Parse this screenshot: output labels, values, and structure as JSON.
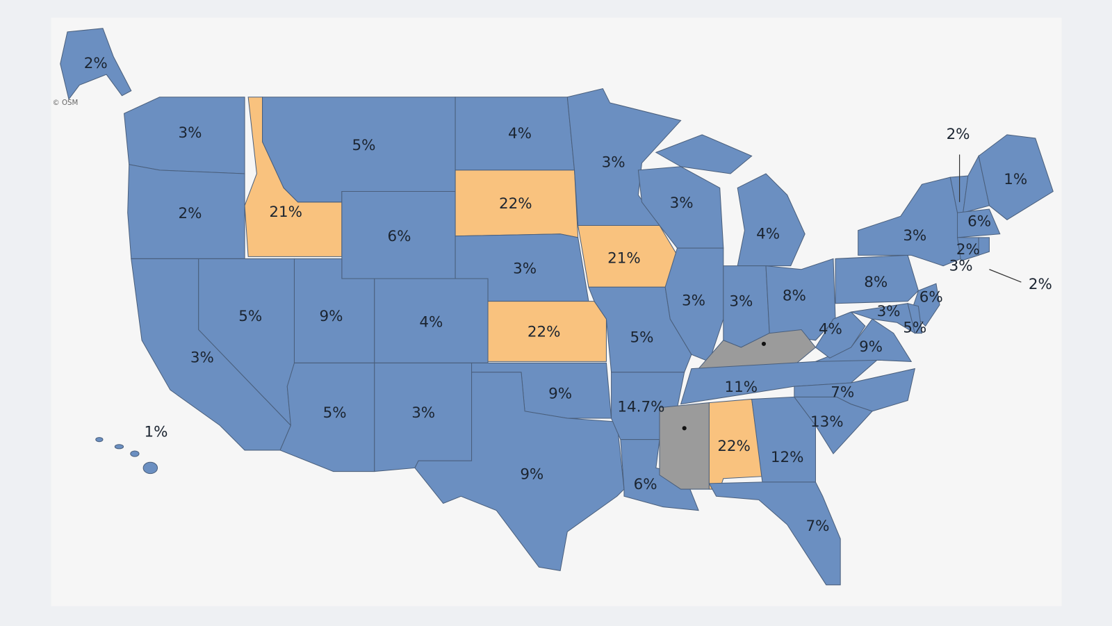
{
  "map": {
    "attribution": "© OSM",
    "regions": [
      {
        "label": "2%",
        "color": "#6b8fc1"
      },
      {
        "label": "1%",
        "color": "#6b8fc1"
      },
      {
        "label": "3%",
        "color": "#6b8fc1"
      },
      {
        "label": "2%",
        "color": "#6b8fc1"
      },
      {
        "label": "3%",
        "color": "#6b8fc1"
      },
      {
        "label": "5%",
        "color": "#6b8fc1"
      },
      {
        "label": "21%",
        "color": "#f9c27e"
      },
      {
        "label": "5%",
        "color": "#6b8fc1"
      },
      {
        "label": "6%",
        "color": "#6b8fc1"
      },
      {
        "label": "9%",
        "color": "#6b8fc1"
      },
      {
        "label": "4%",
        "color": "#6b8fc1"
      },
      {
        "label": "5%",
        "color": "#6b8fc1"
      },
      {
        "label": "3%",
        "color": "#6b8fc1"
      },
      {
        "label": "4%",
        "color": "#6b8fc1"
      },
      {
        "label": "22%",
        "color": "#f9c27e"
      },
      {
        "label": "3%",
        "color": "#6b8fc1"
      },
      {
        "label": "22%",
        "color": "#f9c27e"
      },
      {
        "label": "9%",
        "color": "#6b8fc1"
      },
      {
        "label": "9%",
        "color": "#6b8fc1"
      },
      {
        "label": "3%",
        "color": "#6b8fc1"
      },
      {
        "label": "21%",
        "color": "#f9c27e"
      },
      {
        "label": "5%",
        "color": "#6b8fc1"
      },
      {
        "label": "14.7%",
        "color": "#6b8fc1"
      },
      {
        "label": "6%",
        "color": "#6b8fc1"
      },
      {
        "label": "3%",
        "color": "#6b8fc1"
      },
      {
        "label": "3%",
        "color": "#6b8fc1"
      },
      {
        "label": "4%",
        "color": "#6b8fc1"
      },
      {
        "label": "3%",
        "color": "#6b8fc1"
      },
      {
        "label": "8%",
        "color": "#6b8fc1"
      },
      {
        "color": "#9b9b9b"
      },
      {
        "label": "11%",
        "color": "#6b8fc1"
      },
      {
        "color": "#9b9b9b"
      },
      {
        "label": "22%",
        "color": "#f9c27e"
      },
      {
        "label": "12%",
        "color": "#6b8fc1"
      },
      {
        "label": "7%",
        "color": "#6b8fc1"
      },
      {
        "label": "13%",
        "color": "#6b8fc1"
      },
      {
        "label": "7%",
        "color": "#6b8fc1"
      },
      {
        "label": "9%",
        "color": "#6b8fc1"
      },
      {
        "label": "4%",
        "color": "#6b8fc1"
      },
      {
        "label": "8%",
        "color": "#6b8fc1"
      },
      {
        "label": "3%",
        "color": "#6b8fc1"
      },
      {
        "label": "2%",
        "color": "#6b8fc1"
      },
      {
        "label": "6%",
        "color": "#6b8fc1"
      },
      {
        "label": "1%",
        "color": "#6b8fc1"
      },
      {
        "label": "2%",
        "color": "#6b8fc1"
      },
      {
        "label": "3%",
        "color": "#6b8fc1"
      },
      {
        "label": "2%",
        "color": "#6b8fc1"
      },
      {
        "label": "6%",
        "color": "#6b8fc1"
      },
      {
        "label": "3%",
        "color": "#6b8fc1"
      },
      {
        "label": "5%",
        "color": "#6b8fc1"
      }
    ]
  }
}
